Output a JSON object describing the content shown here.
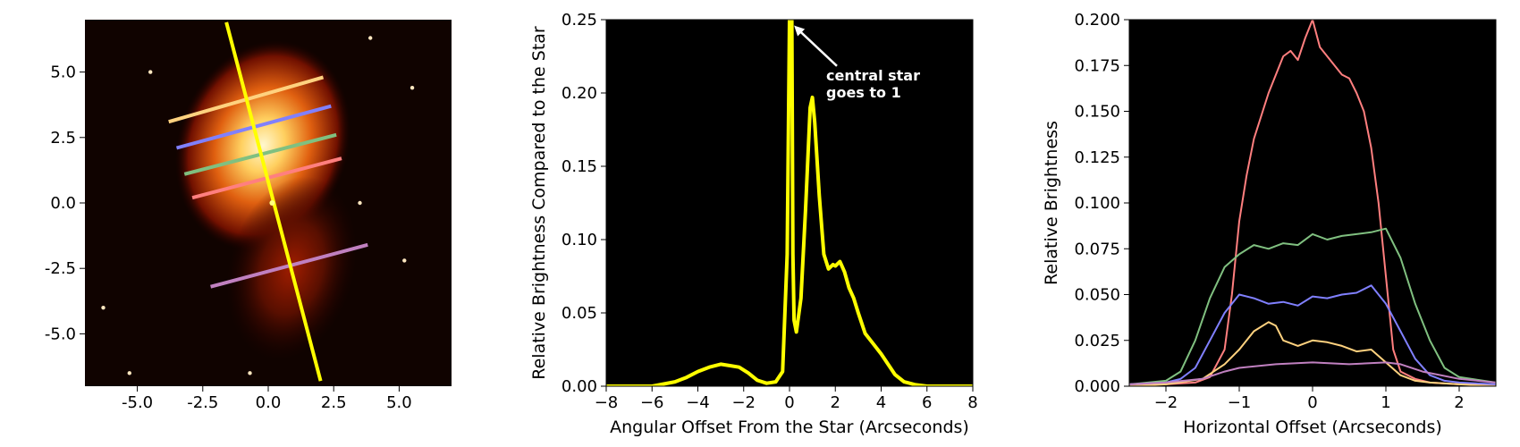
{
  "chart_data": [
    {
      "type": "image",
      "xlim": [
        -7,
        7
      ],
      "ylim": [
        -7,
        7
      ],
      "xticks": [
        -5,
        -2.5,
        0,
        2.5,
        5
      ],
      "xtick_labels": [
        "-5.0",
        "-2.5",
        "0.0",
        "2.5",
        "5.0"
      ],
      "yticks": [
        5,
        2.5,
        0,
        -2.5,
        -5
      ],
      "ytick_labels": [
        "5.0",
        "2.5",
        "0.0",
        "-2.5",
        "-5.0"
      ],
      "slit": {
        "color": "#ffff00",
        "start": [
          -1.6,
          6.9
        ],
        "end": [
          2.0,
          -6.8
        ]
      },
      "cuts": [
        {
          "color": "#ffd27f",
          "start": [
            -3.8,
            3.1
          ],
          "end": [
            2.1,
            4.8
          ]
        },
        {
          "color": "#8080ff",
          "start": [
            -3.5,
            2.1
          ],
          "end": [
            2.4,
            3.7
          ]
        },
        {
          "color": "#80c080",
          "start": [
            -3.2,
            1.1
          ],
          "end": [
            2.6,
            2.6
          ]
        },
        {
          "color": "#ff7f7f",
          "start": [
            -2.9,
            0.2
          ],
          "end": [
            2.8,
            1.7
          ]
        },
        {
          "color": "#c080c0",
          "start": [
            -2.2,
            -3.2
          ],
          "end": [
            3.8,
            -1.6
          ]
        }
      ]
    },
    {
      "type": "line",
      "xlabel": "Angular Offset From the Star (Arcseconds)",
      "ylabel": "Relative Brightness Compared to the Star",
      "xlim": [
        -8,
        8
      ],
      "ylim": [
        0,
        0.25
      ],
      "xticks": [
        -8,
        -6,
        -4,
        -2,
        0,
        2,
        4,
        6,
        8
      ],
      "xtick_labels": [
        "−8",
        "−6",
        "−4",
        "−2",
        "0",
        "2",
        "4",
        "6",
        "8"
      ],
      "yticks": [
        0,
        0.05,
        0.1,
        0.15,
        0.2,
        0.25
      ],
      "ytick_labels": [
        "0.00",
        "0.05",
        "0.10",
        "0.15",
        "0.20",
        "0.25"
      ],
      "annotation": {
        "lines": [
          "central star",
          "goes to 1"
        ],
        "arrow_to": [
          0.2,
          0.246
        ],
        "text_at": [
          1.6,
          0.205
        ]
      },
      "series": [
        {
          "color": "#ffff00",
          "x": [
            -8,
            -6,
            -5,
            -4.5,
            -4,
            -3.5,
            -3,
            -2.6,
            -2.2,
            -1.8,
            -1.4,
            -1,
            -0.6,
            -0.3,
            -0.1,
            0,
            0.05,
            0.1,
            0.15,
            0.2,
            0.3,
            0.5,
            0.7,
            0.9,
            1.0,
            1.1,
            1.3,
            1.5,
            1.7,
            1.9,
            2.0,
            2.2,
            2.4,
            2.6,
            2.8,
            3.0,
            3.3,
            3.6,
            4.0,
            4.3,
            4.6,
            5.0,
            5.5,
            6.0,
            7.0,
            8.0
          ],
          "y": [
            0.0,
            0.0,
            0.003,
            0.006,
            0.01,
            0.013,
            0.015,
            0.014,
            0.013,
            0.009,
            0.004,
            0.002,
            0.003,
            0.01,
            0.09,
            0.25,
            0.25,
            0.25,
            0.09,
            0.045,
            0.037,
            0.06,
            0.12,
            0.19,
            0.197,
            0.18,
            0.13,
            0.09,
            0.08,
            0.083,
            0.082,
            0.085,
            0.078,
            0.067,
            0.06,
            0.05,
            0.036,
            0.03,
            0.022,
            0.015,
            0.008,
            0.003,
            0.001,
            0.0,
            0.0,
            0.0
          ]
        }
      ]
    },
    {
      "type": "line",
      "xlabel": "Horizontal Offset (Arcseconds)",
      "ylabel": "Relative Brightness",
      "xlim": [
        -2.5,
        2.5
      ],
      "ylim": [
        0,
        0.2
      ],
      "xticks": [
        -2,
        -1,
        0,
        1,
        2
      ],
      "xtick_labels": [
        "−2",
        "−1",
        "0",
        "1",
        "2"
      ],
      "yticks": [
        0,
        0.025,
        0.05,
        0.075,
        0.1,
        0.125,
        0.15,
        0.175,
        0.2
      ],
      "ytick_labels": [
        "0.000",
        "0.025",
        "0.050",
        "0.075",
        "0.100",
        "0.125",
        "0.150",
        "0.175",
        "0.200"
      ],
      "series": [
        {
          "color": "#ff7f7f",
          "x": [
            -2.5,
            -2.0,
            -1.6,
            -1.4,
            -1.2,
            -1.1,
            -1.0,
            -0.9,
            -0.8,
            -0.6,
            -0.4,
            -0.3,
            -0.2,
            -0.1,
            0.0,
            0.1,
            0.2,
            0.3,
            0.4,
            0.5,
            0.6,
            0.7,
            0.8,
            0.9,
            1.0,
            1.1,
            1.2,
            1.4,
            1.6,
            2.0,
            2.5
          ],
          "y": [
            0.001,
            0.001,
            0.002,
            0.005,
            0.02,
            0.05,
            0.09,
            0.115,
            0.135,
            0.16,
            0.18,
            0.183,
            0.178,
            0.19,
            0.2,
            0.185,
            0.18,
            0.175,
            0.17,
            0.168,
            0.16,
            0.15,
            0.13,
            0.1,
            0.06,
            0.02,
            0.008,
            0.004,
            0.002,
            0.001,
            0.001
          ]
        },
        {
          "color": "#80c080",
          "x": [
            -2.5,
            -2.0,
            -1.8,
            -1.6,
            -1.4,
            -1.2,
            -1.0,
            -0.8,
            -0.6,
            -0.4,
            -0.2,
            0.0,
            0.2,
            0.4,
            0.6,
            0.8,
            1.0,
            1.2,
            1.4,
            1.6,
            1.8,
            2.0,
            2.5
          ],
          "y": [
            0.001,
            0.003,
            0.008,
            0.025,
            0.048,
            0.065,
            0.072,
            0.077,
            0.075,
            0.078,
            0.077,
            0.083,
            0.08,
            0.082,
            0.083,
            0.084,
            0.086,
            0.07,
            0.045,
            0.025,
            0.01,
            0.005,
            0.002
          ]
        },
        {
          "color": "#8080ff",
          "x": [
            -2.5,
            -2.0,
            -1.8,
            -1.6,
            -1.4,
            -1.2,
            -1.0,
            -0.8,
            -0.6,
            -0.4,
            -0.2,
            0.0,
            0.2,
            0.4,
            0.6,
            0.8,
            1.0,
            1.2,
            1.4,
            1.6,
            1.8,
            2.0,
            2.5
          ],
          "y": [
            0.001,
            0.002,
            0.004,
            0.01,
            0.025,
            0.04,
            0.05,
            0.048,
            0.045,
            0.046,
            0.044,
            0.049,
            0.048,
            0.05,
            0.051,
            0.055,
            0.045,
            0.03,
            0.015,
            0.006,
            0.003,
            0.002,
            0.001
          ]
        },
        {
          "color": "#ffd27f",
          "x": [
            -2.5,
            -2.0,
            -1.5,
            -1.2,
            -1.0,
            -0.8,
            -0.6,
            -0.5,
            -0.4,
            -0.2,
            0.0,
            0.2,
            0.4,
            0.6,
            0.8,
            1.0,
            1.2,
            1.4,
            1.6,
            2.0,
            2.5
          ],
          "y": [
            0.0,
            0.001,
            0.004,
            0.012,
            0.02,
            0.03,
            0.035,
            0.033,
            0.025,
            0.022,
            0.025,
            0.024,
            0.022,
            0.019,
            0.02,
            0.013,
            0.006,
            0.003,
            0.002,
            0.001,
            0.0
          ]
        },
        {
          "color": "#c080c0",
          "x": [
            -2.5,
            -2.0,
            -1.5,
            -1.2,
            -1.0,
            -0.5,
            0.0,
            0.5,
            1.0,
            1.2,
            1.5,
            2.0,
            2.5
          ],
          "y": [
            0.001,
            0.002,
            0.004,
            0.008,
            0.01,
            0.012,
            0.013,
            0.012,
            0.013,
            0.012,
            0.008,
            0.004,
            0.002
          ]
        }
      ]
    }
  ]
}
